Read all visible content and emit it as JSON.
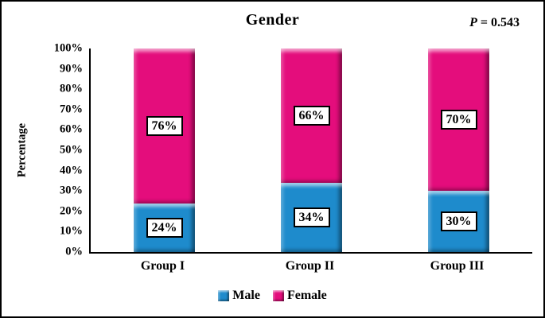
{
  "figure": {
    "background": "#ffffff",
    "border_color": "#000000"
  },
  "chart_data": {
    "type": "bar",
    "stacked": true,
    "title": "Gender",
    "p_value": {
      "symbol": "P",
      "rest": "= 0.543"
    },
    "ylabel": "Percentage",
    "xlabel": "",
    "ylim": [
      0,
      100
    ],
    "grid": false,
    "legend_position": "bottom",
    "y_ticks": [
      "100%",
      "90%",
      "80%",
      "70%",
      "60%",
      "50%",
      "40%",
      "30%",
      "20%",
      "10%",
      "0%"
    ],
    "categories": [
      "Group I",
      "Group II",
      "Group III"
    ],
    "series": [
      {
        "name": "Male",
        "color": "#1E8BCC",
        "values": [
          24,
          34,
          30
        ],
        "labels": [
          "24%",
          "34%",
          "30%"
        ]
      },
      {
        "name": "Female",
        "color": "#E40D7C",
        "values": [
          76,
          66,
          70
        ],
        "labels": [
          "76%",
          "66%",
          "70%"
        ]
      }
    ]
  }
}
